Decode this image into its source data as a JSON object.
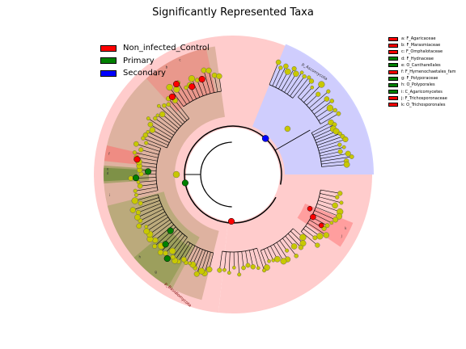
{
  "chart_data": {
    "type": "cladogram",
    "title": "Significantly Represented Taxa",
    "classes": [
      {
        "name": "Non_infected_Control",
        "color": "#ff0000"
      },
      {
        "name": "Primary",
        "color": "#008000"
      },
      {
        "name": "Secondary",
        "color": "#0000ff"
      }
    ],
    "phyla": [
      {
        "label": "p_Ascomycota",
        "color": "#ccccff",
        "enriched_in": "Secondary"
      },
      {
        "label": "p_Basidiomycota",
        "color": "#ffcccc",
        "enriched_in": "Non_infected_Control"
      }
    ],
    "background_color": "#ffcccc",
    "clade_legend": [
      {
        "key": "a",
        "label": "a: F_Agaricaceae",
        "class": "Non_infected_Control",
        "color": "#ff0000"
      },
      {
        "key": "b",
        "label": "b: F_Marasmiaceae",
        "class": "Non_infected_Control",
        "color": "#ff0000"
      },
      {
        "key": "c",
        "label": "c: F_Omphalotaceae",
        "class": "Non_infected_Control",
        "color": "#ff0000"
      },
      {
        "key": "d",
        "label": "d: F_Hydnaceae",
        "class": "Primary",
        "color": "#008000"
      },
      {
        "key": "e",
        "label": "e: O_Cantharellales",
        "class": "Primary",
        "color": "#008000"
      },
      {
        "key": "f",
        "label": "f: F_Hymenochaetales_fam",
        "class": "Non_infected_Control",
        "color": "#ff0000"
      },
      {
        "key": "g",
        "label": "g: F_Polyporaceae",
        "class": "Primary",
        "color": "#008000"
      },
      {
        "key": "h",
        "label": "h: O_Polyporales",
        "class": "Primary",
        "color": "#008000"
      },
      {
        "key": "i",
        "label": "i: C_Agaricomycetes",
        "class": "Primary",
        "color": "#008000"
      },
      {
        "key": "j",
        "label": "j: F_Trichosporonaceae",
        "class": "Non_infected_Control",
        "color": "#ff0000"
      },
      {
        "key": "k",
        "label": "k: O_Trichosporonales",
        "class": "Non_infected_Control",
        "color": "#ff0000"
      }
    ],
    "clade_sector_labels": [
      "a",
      "b",
      "c",
      "d",
      "e",
      "f",
      "g",
      "h",
      "i",
      "j",
      "k"
    ]
  }
}
